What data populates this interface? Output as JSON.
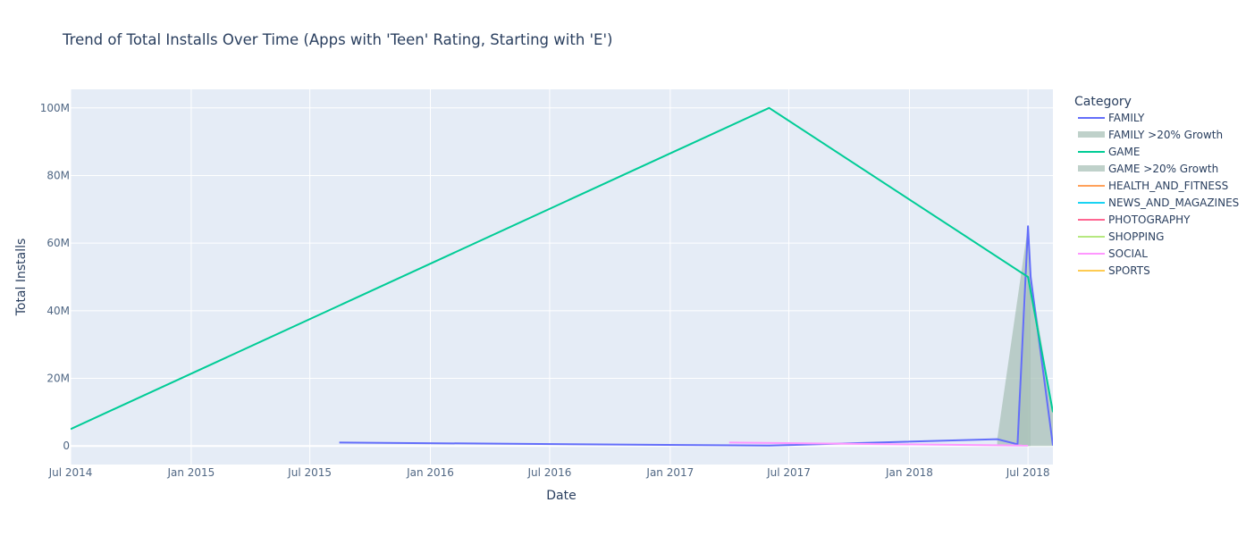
{
  "chart_data": {
    "type": "line",
    "title": "Trend of Total Installs Over Time (Apps with 'Teen' Rating, Starting with 'E')",
    "xlabel": "Date",
    "ylabel": "Total Installs",
    "x_ticks": [
      "Jul 2014",
      "Jan 2015",
      "Jul 2015",
      "Jan 2016",
      "Jul 2016",
      "Jan 2017",
      "Jul 2017",
      "Jan 2018",
      "Jul 2018"
    ],
    "y_ticks": [
      "0",
      "20M",
      "40M",
      "60M",
      "80M",
      "100M"
    ],
    "xlim": [
      "2014-07-01",
      "2018-08-08"
    ],
    "ylim": [
      -5500000,
      105500000
    ],
    "grid": true,
    "legend_title": "Category",
    "legend_placement": "right",
    "series": [
      {
        "name": "FAMILY",
        "color": "#636efa",
        "x": [
          "2015-08-15",
          "2017-06-01",
          "2018-05-15",
          "2018-06-15",
          "2018-07-01",
          "2018-07-05",
          "2018-08-08"
        ],
        "y": [
          1000000,
          100000,
          2000000,
          500000,
          65000000,
          50000000,
          100000
        ]
      },
      {
        "name": "FAMILY >20% Growth",
        "type": "band",
        "color": "#a9c1b8",
        "x": [
          "2018-05-15",
          "2018-07-01",
          "2018-07-05"
        ],
        "y": [
          2000000,
          65000000,
          50000000
        ]
      },
      {
        "name": "GAME",
        "color": "#00cc96",
        "x": [
          "2014-07-01",
          "2017-06-01",
          "2018-07-01",
          "2018-08-08"
        ],
        "y": [
          5000000,
          100000000,
          50000000,
          10000000
        ]
      },
      {
        "name": "GAME >20% Growth",
        "type": "band",
        "color": "#a9c1b8",
        "x": [
          "2018-06-15",
          "2018-07-01",
          "2018-07-05",
          "2018-08-08"
        ],
        "y": [
          10000000,
          50000000,
          50000000,
          10000000
        ]
      },
      {
        "name": "HEALTH_AND_FITNESS",
        "color": "#ffa15a",
        "x": [],
        "y": []
      },
      {
        "name": "NEWS_AND_MAGAZINES",
        "color": "#19d3f3",
        "x": [],
        "y": []
      },
      {
        "name": "PHOTOGRAPHY",
        "color": "#ff6692",
        "x": [],
        "y": []
      },
      {
        "name": "SHOPPING",
        "color": "#b6e880",
        "x": [],
        "y": []
      },
      {
        "name": "SOCIAL",
        "color": "#ff97ff",
        "x": [
          "2017-04-01",
          "2018-07-01"
        ],
        "y": [
          1000000,
          100000
        ]
      },
      {
        "name": "SPORTS",
        "color": "#fecb52",
        "x": [],
        "y": []
      }
    ]
  }
}
